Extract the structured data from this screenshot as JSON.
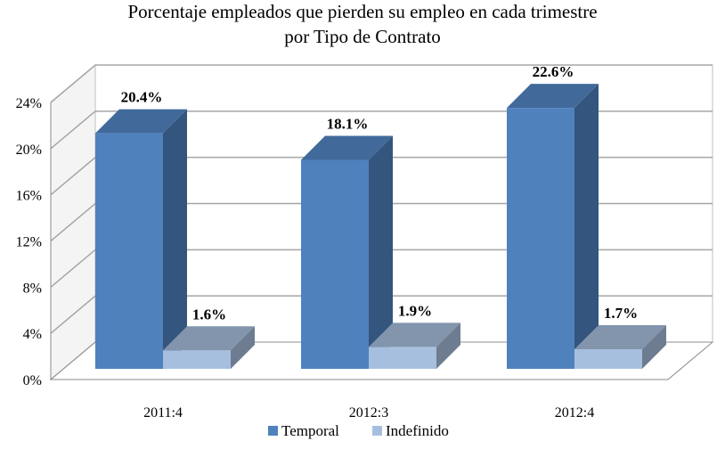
{
  "chart_data": {
    "type": "bar",
    "title": "Porcentaje empleados que pierden su empleo en cada trimestre",
    "subtitle": "por Tipo de Contrato",
    "xlabel": "",
    "ylabel": "",
    "categories": [
      "2011:4",
      "2012:3",
      "2012:4"
    ],
    "series": [
      {
        "name": "Temporal",
        "values": [
          20.4,
          18.1,
          22.6
        ],
        "labels": [
          "20.4%",
          "18.1%",
          "22.6%"
        ],
        "color": "#4F81BD"
      },
      {
        "name": "Indefinido",
        "values": [
          1.6,
          1.9,
          1.7
        ],
        "labels": [
          "1.6%",
          "1.9%",
          "1.7%"
        ],
        "color": "#A7BFDE"
      }
    ],
    "yticks": [
      0,
      4,
      8,
      12,
      16,
      20,
      24
    ],
    "ytick_labels": [
      "0%",
      "4%",
      "8%",
      "12%",
      "16%",
      "20%",
      "24%"
    ],
    "ylim": [
      0,
      24
    ],
    "grid": true,
    "legend": "bottom",
    "style": "3d-clustered-column"
  }
}
